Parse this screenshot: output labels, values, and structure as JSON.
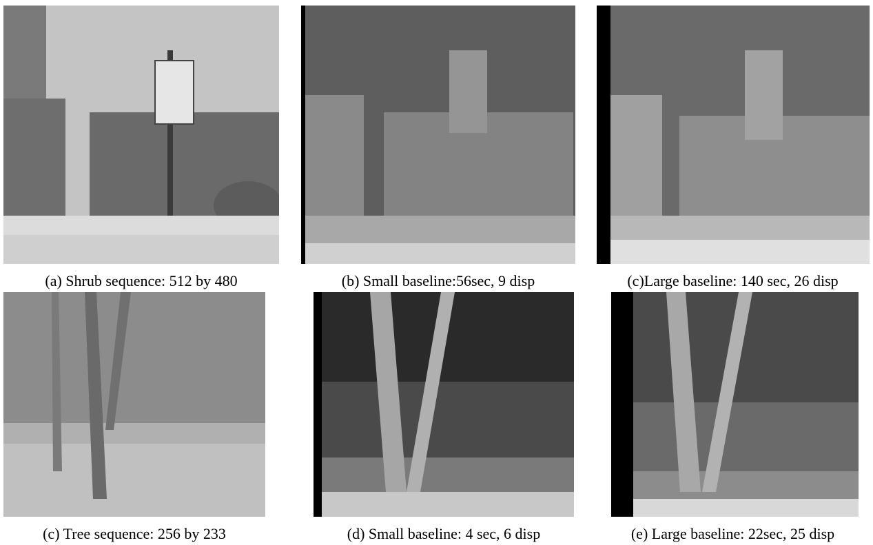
{
  "figure": {
    "panels": [
      {
        "caption": "(a) Shrub sequence: 512 by 480"
      },
      {
        "caption": "(b) Small baseline:56sec, 9 disp"
      },
      {
        "caption": "(c)Large baseline: 140 sec, 26 disp"
      },
      {
        "caption": "(c) Tree sequence: 256 by 233"
      },
      {
        "caption": "(d) Small baseline: 4 sec, 6 disp"
      },
      {
        "caption": "(e) Large baseline: 22sec, 25 disp"
      }
    ]
  }
}
